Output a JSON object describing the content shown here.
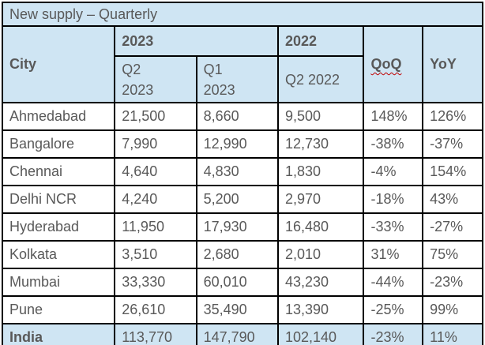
{
  "chart_data": {
    "type": "table",
    "title": "New supply – Quarterly",
    "header": {
      "city": "City",
      "group_2023": "2023",
      "group_2022": "2022",
      "q2_2023": "Q2\n2023",
      "q1_2023": "Q1\n2023",
      "q2_2022": "Q2 2022",
      "qoq": "QoQ",
      "yoy": "YoY"
    },
    "rows": [
      {
        "city": "Ahmedabad",
        "q2_2023": "21,500",
        "q1_2023": "8,660",
        "q2_2022": "9,500",
        "qoq": "148%",
        "yoy": "126%"
      },
      {
        "city": "Bangalore",
        "q2_2023": "7,990",
        "q1_2023": "12,990",
        "q2_2022": "12,730",
        "qoq": "-38%",
        "yoy": "-37%"
      },
      {
        "city": "Chennai",
        "q2_2023": "4,640",
        "q1_2023": "4,830",
        "q2_2022": "1,830",
        "qoq": "-4%",
        "yoy": "154%"
      },
      {
        "city": "Delhi NCR",
        "q2_2023": "4,240",
        "q1_2023": "5,200",
        "q2_2022": "2,970",
        "qoq": "-18%",
        "yoy": "43%"
      },
      {
        "city": "Hyderabad",
        "q2_2023": "11,950",
        "q1_2023": "17,930",
        "q2_2022": "16,480",
        "qoq": "-33%",
        "yoy": "-27%"
      },
      {
        "city": "Kolkata",
        "q2_2023": "3,510",
        "q1_2023": "2,680",
        "q2_2022": "2,010",
        "qoq": "31%",
        "yoy": "75%"
      },
      {
        "city": "Mumbai",
        "q2_2023": "33,330",
        "q1_2023": "60,010",
        "q2_2022": "43,230",
        "qoq": "-44%",
        "yoy": "-23%"
      },
      {
        "city": "Pune",
        "q2_2023": "26,610",
        "q1_2023": "35,490",
        "q2_2022": "13,390",
        "qoq": "-25%",
        "yoy": "99%"
      }
    ],
    "total_row": {
      "city": "India",
      "q2_2023": "113,770",
      "q1_2023": "147,790",
      "q2_2022": "102,140",
      "qoq": "-23%",
      "yoy": "11%"
    }
  },
  "colors": {
    "header_fill": "#cfe5f3",
    "border": "#000000",
    "text": "#595959",
    "title_text": "#4d4d4d",
    "squiggle": "#c00000"
  }
}
